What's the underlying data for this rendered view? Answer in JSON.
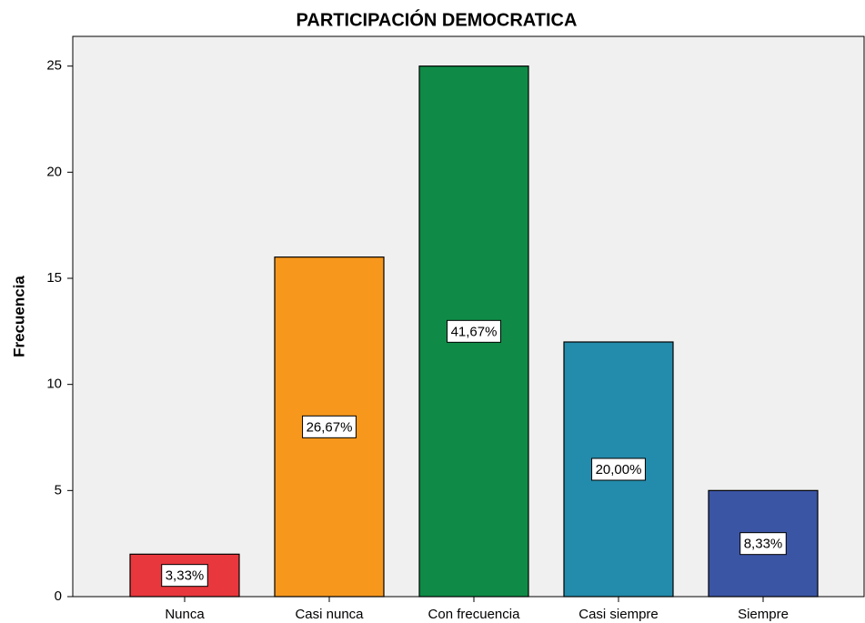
{
  "chart_data": {
    "type": "bar",
    "title": "PARTICIPACIÓN DEMOCRATICA",
    "y_label": "Frecuencia",
    "categories": [
      "Nunca",
      "Casi nunca",
      "Con frecuencia",
      "Casi siempre",
      "Siempre"
    ],
    "values": [
      2,
      16,
      25,
      12,
      5
    ],
    "colors": [
      "#e8373d",
      "#f7981d",
      "#0f8b47",
      "#238bab",
      "#3b55a5"
    ],
    "percentages": {
      "values": [
        3.33,
        26.67,
        41.67,
        20.0,
        8.33
      ],
      "labels": [
        "3,33%",
        "26,67%",
        "41,67%",
        "20,00%",
        "8,33%"
      ]
    },
    "ylim": [
      0,
      26.4
    ],
    "yticks": [
      0,
      5,
      10,
      15,
      20,
      25
    ],
    "grid": false
  }
}
